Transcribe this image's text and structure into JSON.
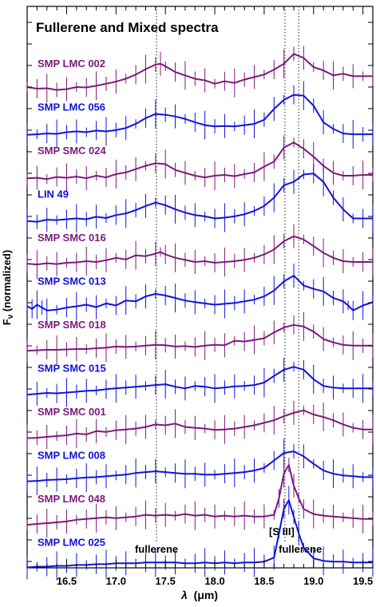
{
  "chart_data": {
    "type": "line",
    "title": "Fullerene and Mixed spectra",
    "xlabel": "λ (μm)",
    "xlabel_parts": {
      "symbol": "λ",
      "unit": "(μm)"
    },
    "ylabel": "Fν (normalized)",
    "ylabel_parts": {
      "main": "F",
      "sub": "ν",
      "rest": " (normalized)"
    },
    "xlim": [
      16.1,
      19.6
    ],
    "x_ticks": [
      "16.5",
      "17.0",
      "17.5",
      "18.0",
      "18.5",
      "19.0",
      "19.5"
    ],
    "x_tick_values": [
      16.5,
      17.0,
      17.5,
      18.0,
      18.5,
      19.0,
      19.5
    ],
    "grid": false,
    "colors": {
      "purple": "#7b1a7b",
      "blue": "#1212d8"
    },
    "vlines": [
      {
        "x": 17.41,
        "label": "fullerene"
      },
      {
        "x": 18.71,
        "label": "[S III]"
      },
      {
        "x": 18.85,
        "label": "fullerene"
      }
    ],
    "series": [
      {
        "name": "SMP LMC 002",
        "color": "#7b1a7b",
        "x": [
          16.1,
          16.2,
          16.3,
          16.4,
          16.5,
          16.6,
          16.7,
          16.8,
          16.9,
          17.0,
          17.1,
          17.2,
          17.3,
          17.4,
          17.45,
          17.5,
          17.6,
          17.7,
          17.8,
          17.9,
          18.0,
          18.1,
          18.2,
          18.3,
          18.4,
          18.5,
          18.6,
          18.7,
          18.8,
          18.9,
          19.0,
          19.1,
          19.2,
          19.3,
          19.4,
          19.5,
          19.6
        ],
        "y": [
          1.02,
          0.98,
          0.99,
          0.95,
          0.97,
          1.02,
          1.01,
          1.05,
          1.1,
          1.15,
          1.22,
          1.32,
          1.45,
          1.56,
          1.58,
          1.52,
          1.38,
          1.3,
          1.22,
          1.18,
          1.1,
          1.16,
          1.12,
          1.2,
          1.26,
          1.32,
          1.44,
          1.58,
          1.82,
          1.72,
          1.5,
          1.42,
          1.3,
          1.34,
          1.28,
          1.28,
          1.28
        ]
      },
      {
        "name": "SMP LMC 056",
        "color": "#1212d8",
        "x": [
          16.1,
          16.2,
          16.3,
          16.4,
          16.5,
          16.6,
          16.7,
          16.8,
          16.9,
          17.0,
          17.1,
          17.2,
          17.3,
          17.4,
          17.5,
          17.6,
          17.7,
          17.8,
          17.9,
          18.0,
          18.1,
          18.2,
          18.3,
          18.4,
          18.5,
          18.6,
          18.7,
          18.8,
          18.9,
          19.0,
          19.1,
          19.2,
          19.3,
          19.4,
          19.5,
          19.6
        ],
        "y": [
          0.92,
          0.93,
          0.95,
          0.94,
          0.98,
          1.0,
          0.98,
          1.02,
          1.0,
          1.03,
          1.08,
          1.18,
          1.32,
          1.42,
          1.4,
          1.36,
          1.3,
          1.22,
          1.15,
          1.12,
          1.13,
          1.12,
          1.15,
          1.18,
          1.28,
          1.54,
          1.76,
          1.88,
          1.86,
          1.62,
          1.22,
          1.06,
          0.95,
          0.93,
          0.93,
          0.93
        ]
      },
      {
        "name": "SMP SMC 024",
        "color": "#7b1a7b",
        "x": [
          16.1,
          16.2,
          16.3,
          16.4,
          16.5,
          16.6,
          16.7,
          16.8,
          16.9,
          17.0,
          17.1,
          17.2,
          17.3,
          17.4,
          17.5,
          17.6,
          17.7,
          17.8,
          17.9,
          18.0,
          18.1,
          18.2,
          18.3,
          18.4,
          18.5,
          18.6,
          18.7,
          18.8,
          18.9,
          19.0,
          19.1,
          19.2,
          19.3,
          19.4,
          19.5,
          19.6
        ],
        "y": [
          0.92,
          0.93,
          0.9,
          0.95,
          0.93,
          0.96,
          0.92,
          0.98,
          0.94,
          1.02,
          1.06,
          1.14,
          1.22,
          1.28,
          1.26,
          1.12,
          1.05,
          0.98,
          0.94,
          0.98,
          1.0,
          0.97,
          1.02,
          1.06,
          1.2,
          1.32,
          1.66,
          1.78,
          1.63,
          1.44,
          1.22,
          1.05,
          0.98,
          0.98,
          1.0,
          1.0
        ]
      },
      {
        "name": "LIN 49",
        "color": "#1212d8",
        "x": [
          16.1,
          16.2,
          16.3,
          16.4,
          16.5,
          16.6,
          16.7,
          16.8,
          16.9,
          17.0,
          17.1,
          17.2,
          17.3,
          17.4,
          17.5,
          17.6,
          17.7,
          17.8,
          17.9,
          18.0,
          18.1,
          18.2,
          18.3,
          18.4,
          18.5,
          18.6,
          18.7,
          18.8,
          18.9,
          19.0,
          19.1,
          19.2,
          19.3,
          19.4,
          19.5,
          19.6
        ],
        "y": [
          0.94,
          0.92,
          0.97,
          0.96,
          0.98,
          1.0,
          0.98,
          1.04,
          1.01,
          1.08,
          1.12,
          1.2,
          1.3,
          1.38,
          1.32,
          1.22,
          1.14,
          1.08,
          1.05,
          1.0,
          1.02,
          1.05,
          1.1,
          1.18,
          1.3,
          1.5,
          1.8,
          1.88,
          2.06,
          2.08,
          1.88,
          1.5,
          1.22,
          1.0,
          1.0,
          1.0
        ]
      },
      {
        "name": "SMP SMC 016",
        "color": "#7b1a7b",
        "x": [
          16.1,
          16.2,
          16.3,
          16.4,
          16.5,
          16.6,
          16.7,
          16.8,
          16.9,
          17.0,
          17.1,
          17.2,
          17.3,
          17.4,
          17.45,
          17.5,
          17.6,
          17.7,
          17.8,
          17.9,
          18.0,
          18.1,
          18.2,
          18.3,
          18.4,
          18.5,
          18.6,
          18.7,
          18.8,
          18.9,
          19.0,
          19.1,
          19.2,
          19.3,
          19.4,
          19.5,
          19.6
        ],
        "y": [
          0.96,
          0.94,
          0.97,
          0.95,
          0.98,
          0.99,
          1.02,
          1.0,
          1.04,
          1.1,
          1.06,
          1.16,
          1.14,
          1.2,
          1.24,
          1.18,
          1.1,
          1.05,
          1.0,
          1.02,
          0.98,
          1.0,
          1.02,
          1.05,
          1.1,
          1.18,
          1.3,
          1.5,
          1.62,
          1.54,
          1.38,
          1.22,
          1.1,
          1.02,
          1.0,
          1.0,
          1.0
        ]
      },
      {
        "name": "SMP SMC 013",
        "color": "#1212d8",
        "x": [
          16.1,
          16.15,
          16.2,
          16.25,
          16.3,
          16.4,
          16.5,
          16.6,
          16.7,
          16.8,
          16.9,
          17.0,
          17.1,
          17.2,
          17.3,
          17.4,
          17.5,
          17.6,
          17.7,
          17.8,
          17.9,
          18.0,
          18.1,
          18.2,
          18.3,
          18.4,
          18.5,
          18.6,
          18.7,
          18.8,
          18.9,
          19.0,
          19.1,
          19.2,
          19.3,
          19.35,
          19.4,
          19.5,
          19.6
        ],
        "y": [
          0.98,
          0.92,
          1.02,
          0.95,
          0.88,
          0.9,
          0.95,
          0.98,
          1.02,
          0.96,
          1.05,
          1.0,
          1.12,
          1.1,
          1.22,
          1.28,
          1.24,
          1.18,
          1.12,
          1.08,
          1.05,
          1.02,
          1.04,
          1.06,
          1.1,
          1.14,
          1.22,
          1.36,
          1.58,
          1.72,
          1.48,
          1.4,
          1.34,
          1.18,
          1.1,
          1.0,
          0.88,
          1.0,
          1.08
        ]
      },
      {
        "name": "SMP SMC 018",
        "color": "#7b1a7b",
        "x": [
          16.1,
          16.2,
          16.3,
          16.4,
          16.5,
          16.6,
          16.7,
          16.8,
          16.9,
          17.0,
          17.1,
          17.2,
          17.3,
          17.4,
          17.5,
          17.6,
          17.7,
          17.8,
          17.9,
          18.0,
          18.1,
          18.2,
          18.3,
          18.4,
          18.5,
          18.6,
          18.7,
          18.8,
          18.9,
          19.0,
          19.1,
          19.2,
          19.3,
          19.4,
          19.5,
          19.6
        ],
        "y": [
          0.96,
          0.97,
          0.98,
          0.98,
          0.99,
          1.0,
          1.0,
          1.02,
          1.03,
          1.06,
          1.05,
          1.06,
          1.08,
          1.1,
          1.09,
          1.06,
          1.07,
          1.05,
          1.08,
          1.1,
          1.09,
          1.2,
          1.18,
          1.22,
          1.26,
          1.4,
          1.52,
          1.58,
          1.54,
          1.42,
          1.24,
          1.16,
          1.1,
          1.08,
          1.08,
          1.08
        ]
      },
      {
        "name": "SMP SMC 015",
        "color": "#1212d8",
        "x": [
          16.1,
          16.2,
          16.3,
          16.4,
          16.5,
          16.6,
          16.7,
          16.8,
          16.9,
          17.0,
          17.1,
          17.2,
          17.3,
          17.4,
          17.5,
          17.6,
          17.7,
          17.8,
          17.9,
          18.0,
          18.1,
          18.2,
          18.3,
          18.4,
          18.5,
          18.6,
          18.7,
          18.8,
          18.9,
          19.0,
          19.1,
          19.2,
          19.3,
          19.4,
          19.5,
          19.6
        ],
        "y": [
          0.95,
          0.97,
          0.99,
          0.98,
          1.0,
          1.02,
          1.04,
          1.05,
          1.08,
          1.1,
          1.12,
          1.14,
          1.16,
          1.18,
          1.2,
          1.14,
          1.1,
          1.16,
          1.14,
          1.1,
          1.12,
          1.15,
          1.16,
          1.18,
          1.24,
          1.4,
          1.55,
          1.62,
          1.55,
          1.32,
          1.16,
          1.12,
          1.1,
          1.1,
          1.1,
          1.1
        ]
      },
      {
        "name": "SMP SMC 001",
        "color": "#7b1a7b",
        "x": [
          16.1,
          16.2,
          16.3,
          16.4,
          16.5,
          16.6,
          16.7,
          16.8,
          16.9,
          17.0,
          17.1,
          17.2,
          17.3,
          17.4,
          17.5,
          17.6,
          17.7,
          17.8,
          17.9,
          18.0,
          18.1,
          18.2,
          18.3,
          18.4,
          18.5,
          18.6,
          18.7,
          18.8,
          18.9,
          19.0,
          19.1,
          19.2,
          19.3,
          19.4,
          19.5,
          19.6
        ],
        "y": [
          0.95,
          0.96,
          0.98,
          1.0,
          1.02,
          1.06,
          1.04,
          1.12,
          1.1,
          1.14,
          1.16,
          1.18,
          1.22,
          1.28,
          1.26,
          1.3,
          1.22,
          1.2,
          1.18,
          1.15,
          1.16,
          1.18,
          1.22,
          1.26,
          1.32,
          1.38,
          1.48,
          1.56,
          1.62,
          1.52,
          1.46,
          1.38,
          1.28,
          1.2,
          1.16,
          1.16
        ]
      },
      {
        "name": "SMP LMC 008",
        "color": "#1212d8",
        "x": [
          16.1,
          16.2,
          16.3,
          16.4,
          16.5,
          16.6,
          16.7,
          16.8,
          16.9,
          17.0,
          17.1,
          17.2,
          17.3,
          17.4,
          17.5,
          17.6,
          17.7,
          17.8,
          17.9,
          18.0,
          18.1,
          18.2,
          18.3,
          18.4,
          18.5,
          18.6,
          18.7,
          18.8,
          18.9,
          19.0,
          19.1,
          19.2,
          19.3,
          19.4,
          19.5,
          19.6
        ],
        "y": [
          0.96,
          0.97,
          0.99,
          1.0,
          1.01,
          1.03,
          1.05,
          1.06,
          1.08,
          1.1,
          1.12,
          1.16,
          1.18,
          1.2,
          1.18,
          1.16,
          1.14,
          1.14,
          1.12,
          1.12,
          1.14,
          1.16,
          1.18,
          1.22,
          1.28,
          1.46,
          1.64,
          1.68,
          1.56,
          1.38,
          1.22,
          1.14,
          1.1,
          1.08,
          1.06,
          1.06
        ]
      },
      {
        "name": "SMP LMC 048",
        "color": "#7b1a7b",
        "x": [
          16.1,
          16.2,
          16.3,
          16.4,
          16.5,
          16.6,
          16.7,
          16.8,
          16.9,
          17.0,
          17.1,
          17.2,
          17.3,
          17.4,
          17.5,
          17.6,
          17.7,
          17.8,
          17.9,
          18.0,
          18.1,
          18.2,
          18.3,
          18.4,
          18.5,
          18.6,
          18.65,
          18.7,
          18.75,
          18.8,
          18.85,
          18.9,
          19.0,
          19.1,
          19.2,
          19.3,
          19.4,
          19.5,
          19.6
        ],
        "y": [
          0.96,
          0.98,
          1.0,
          1.02,
          1.04,
          1.08,
          1.1,
          1.12,
          1.14,
          1.12,
          1.14,
          1.16,
          1.2,
          1.18,
          1.2,
          1.18,
          1.22,
          1.18,
          1.2,
          1.16,
          1.18,
          1.16,
          1.18,
          1.16,
          1.16,
          1.2,
          1.6,
          2.2,
          2.4,
          1.9,
          1.6,
          1.34,
          1.22,
          1.18,
          1.16,
          1.14,
          1.12,
          1.1,
          1.1
        ]
      },
      {
        "name": "SMP LMC 025",
        "color": "#1212d8",
        "x": [
          16.1,
          16.2,
          16.3,
          16.4,
          16.5,
          16.6,
          16.7,
          16.8,
          16.9,
          17.0,
          17.1,
          17.2,
          17.3,
          17.4,
          17.5,
          17.6,
          17.7,
          17.8,
          17.9,
          18.0,
          18.1,
          18.2,
          18.3,
          18.4,
          18.5,
          18.6,
          18.65,
          18.7,
          18.75,
          18.8,
          18.85,
          18.9,
          19.0,
          19.1,
          19.2,
          19.3,
          19.4,
          19.5,
          19.6
        ],
        "y": [
          0.98,
          1.0,
          1.0,
          1.02,
          1.02,
          1.04,
          1.04,
          1.06,
          1.06,
          1.08,
          1.08,
          1.08,
          1.1,
          1.1,
          1.1,
          1.1,
          1.08,
          1.08,
          1.1,
          1.08,
          1.1,
          1.08,
          1.1,
          1.1,
          1.12,
          1.22,
          1.8,
          2.4,
          2.6,
          2.2,
          1.8,
          1.46,
          1.2,
          1.14,
          1.12,
          1.12,
          1.1,
          1.1,
          1.1
        ]
      }
    ]
  }
}
